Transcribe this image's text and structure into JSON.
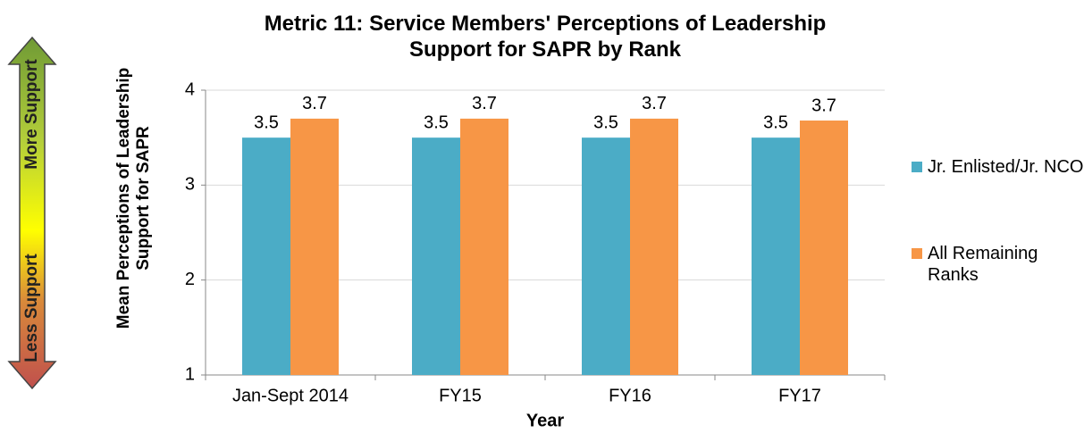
{
  "chart_data": {
    "type": "bar",
    "title": "Metric 11: Service Members' Perceptions of Leadership Support for SAPR by Rank",
    "ylabel": "Mean Perceptions of Leadership Support for SAPR",
    "xlabel": "Year",
    "annotations": [
      "More Support",
      "Less Support"
    ],
    "categories": [
      "Jan-Sept 2014",
      "FY15",
      "FY16",
      "FY17"
    ],
    "series": [
      {
        "name": "Jr. Enlisted/Jr. NCO",
        "color": "#4bacc6",
        "values": [
          3.5,
          3.5,
          3.5,
          3.5
        ]
      },
      {
        "name": "All Remaining Ranks",
        "color": "#f79646",
        "values": [
          3.7,
          3.7,
          3.7,
          3.68
        ],
        "value_labels": [
          "3.7",
          "3.7",
          "3.7",
          "3.7"
        ]
      }
    ],
    "ylim": [
      1,
      4
    ],
    "yticks": [
      1,
      2,
      3,
      4
    ],
    "grid": true,
    "legend": "right"
  }
}
